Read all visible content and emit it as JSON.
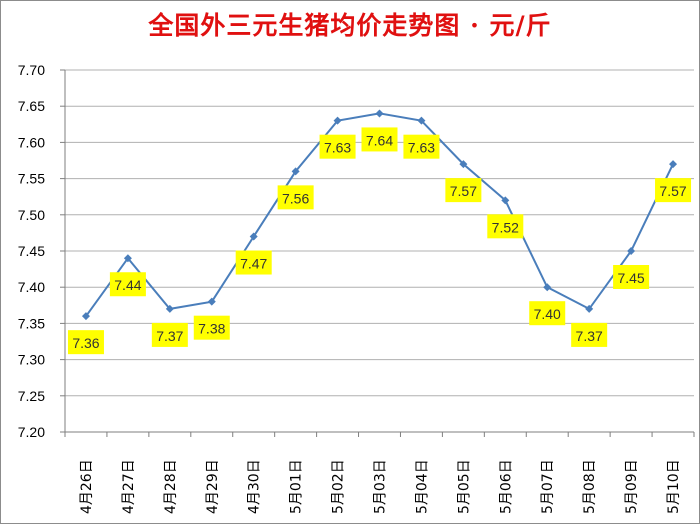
{
  "chart_data": {
    "type": "line",
    "title": "全国外三元生猪均价走势图 · 元/斤",
    "categories": [
      "4月26日",
      "4月27日",
      "4月28日",
      "4月29日",
      "4月30日",
      "5月01日",
      "5月02日",
      "5月03日",
      "5月04日",
      "5月05日",
      "5月06日",
      "5月07日",
      "5月08日",
      "5月09日",
      "5月10日"
    ],
    "values": [
      7.36,
      7.44,
      7.37,
      7.38,
      7.47,
      7.56,
      7.63,
      7.64,
      7.63,
      7.57,
      7.52,
      7.4,
      7.37,
      7.45,
      7.57
    ],
    "data_labels": [
      "7.36",
      "7.44",
      "7.37",
      "7.38",
      "7.47",
      "7.56",
      "7.63",
      "7.64",
      "7.63",
      "7.57",
      "7.52",
      "7.40",
      "7.37",
      "7.45",
      "7.57"
    ],
    "label_side": [
      "below",
      "below",
      "below",
      "below",
      "below",
      "below",
      "below",
      "below",
      "below",
      "below",
      "below",
      "below",
      "below",
      "below",
      "below"
    ],
    "yticks": [
      "7.20",
      "7.25",
      "7.30",
      "7.35",
      "7.40",
      "7.45",
      "7.50",
      "7.55",
      "7.60",
      "7.65",
      "7.70"
    ],
    "ylim": [
      7.2,
      7.7
    ],
    "grid": true,
    "colors": {
      "line": "#4a7ebb",
      "marker": "#4a7ebb",
      "label_bg": "#ffff00",
      "title": "#e01010",
      "grid": "#b0b0b0",
      "axis": "#7f7f7f"
    }
  }
}
